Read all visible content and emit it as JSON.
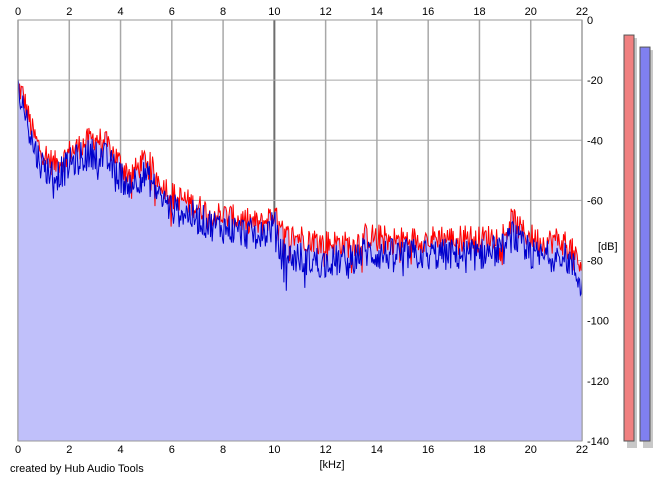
{
  "chart_data": {
    "type": "area",
    "xlabel": "[kHz]",
    "ylabel": "[dB]",
    "xlim": [
      0,
      22
    ],
    "ylim": [
      -140,
      0
    ],
    "x_ticks": [
      "0",
      "2",
      "4",
      "6",
      "8",
      "10",
      "12",
      "14",
      "16",
      "18",
      "20",
      "22"
    ],
    "y_ticks": [
      "0",
      "-20",
      "-40",
      "-60",
      "-80",
      "-100",
      "-120",
      "-140"
    ],
    "grid": true,
    "series": [
      {
        "channel": "left",
        "color": "#ff0000",
        "x": [
          0,
          0.2,
          0.4,
          0.6,
          0.8,
          1,
          1.2,
          1.4,
          1.6,
          1.8,
          2,
          2.2,
          2.4,
          2.6,
          2.8,
          3,
          3.2,
          3.4,
          3.6,
          3.8,
          4,
          4.2,
          4.4,
          4.6,
          4.8,
          5,
          5.2,
          5.4,
          5.6,
          5.8,
          6,
          6.5,
          7,
          7.5,
          8,
          8.5,
          9,
          9.5,
          10,
          10.2,
          10.5,
          11,
          11.5,
          12,
          12.5,
          13,
          13.5,
          14,
          14.5,
          15,
          15.5,
          16,
          16.5,
          17,
          17.5,
          18,
          18.5,
          19,
          19.3,
          19.6,
          20,
          20.5,
          21,
          21.5,
          22
        ],
        "values": [
          -22,
          -25,
          -32,
          -38,
          -42,
          -44,
          -46,
          -48,
          -47,
          -46,
          -44,
          -43,
          -42,
          -41,
          -40,
          -39,
          -40,
          -41,
          -43,
          -45,
          -48,
          -50,
          -51,
          -50,
          -48,
          -46,
          -49,
          -52,
          -54,
          -56,
          -58,
          -60,
          -62,
          -64,
          -65,
          -66,
          -67,
          -68,
          -64,
          -70,
          -72,
          -72,
          -73,
          -74,
          -74,
          -75,
          -72,
          -72,
          -73,
          -73,
          -73,
          -73,
          -72,
          -73,
          -72,
          -73,
          -72,
          -71,
          -66,
          -70,
          -72,
          -74,
          -73,
          -75,
          -83
        ]
      },
      {
        "channel": "right",
        "color": "#0000cc",
        "x": [
          0,
          0.2,
          0.4,
          0.6,
          0.8,
          1,
          1.2,
          1.4,
          1.6,
          1.8,
          2,
          2.2,
          2.4,
          2.6,
          2.8,
          3,
          3.2,
          3.4,
          3.6,
          3.8,
          4,
          4.2,
          4.4,
          4.6,
          4.8,
          5,
          5.2,
          5.4,
          5.6,
          5.8,
          6,
          6.5,
          7,
          7.5,
          8,
          8.5,
          9,
          9.5,
          10,
          10.2,
          10.5,
          11,
          11.5,
          12,
          12.5,
          13,
          13.5,
          14,
          14.5,
          15,
          15.5,
          16,
          16.5,
          17,
          17.5,
          18,
          18.5,
          19,
          19.3,
          19.6,
          20,
          20.5,
          21,
          21.5,
          22
        ],
        "values": [
          -24,
          -28,
          -35,
          -42,
          -46,
          -49,
          -50,
          -52,
          -51,
          -50,
          -48,
          -47,
          -46,
          -45,
          -45,
          -44,
          -45,
          -46,
          -48,
          -50,
          -52,
          -54,
          -54,
          -53,
          -52,
          -52,
          -54,
          -57,
          -59,
          -61,
          -63,
          -64,
          -66,
          -68,
          -69,
          -70,
          -71,
          -72,
          -68,
          -77,
          -79,
          -79,
          -80,
          -81,
          -80,
          -80,
          -77,
          -78,
          -78,
          -78,
          -78,
          -78,
          -78,
          -78,
          -78,
          -78,
          -77,
          -76,
          -71,
          -75,
          -78,
          -79,
          -78,
          -80,
          -88
        ]
      }
    ],
    "meters": {
      "left": {
        "color": "#f08080",
        "level_db": -5
      },
      "right": {
        "color": "#8080f0",
        "level_db": -9
      }
    }
  },
  "footer": {
    "credit": "created by Hub Audio Tools"
  }
}
